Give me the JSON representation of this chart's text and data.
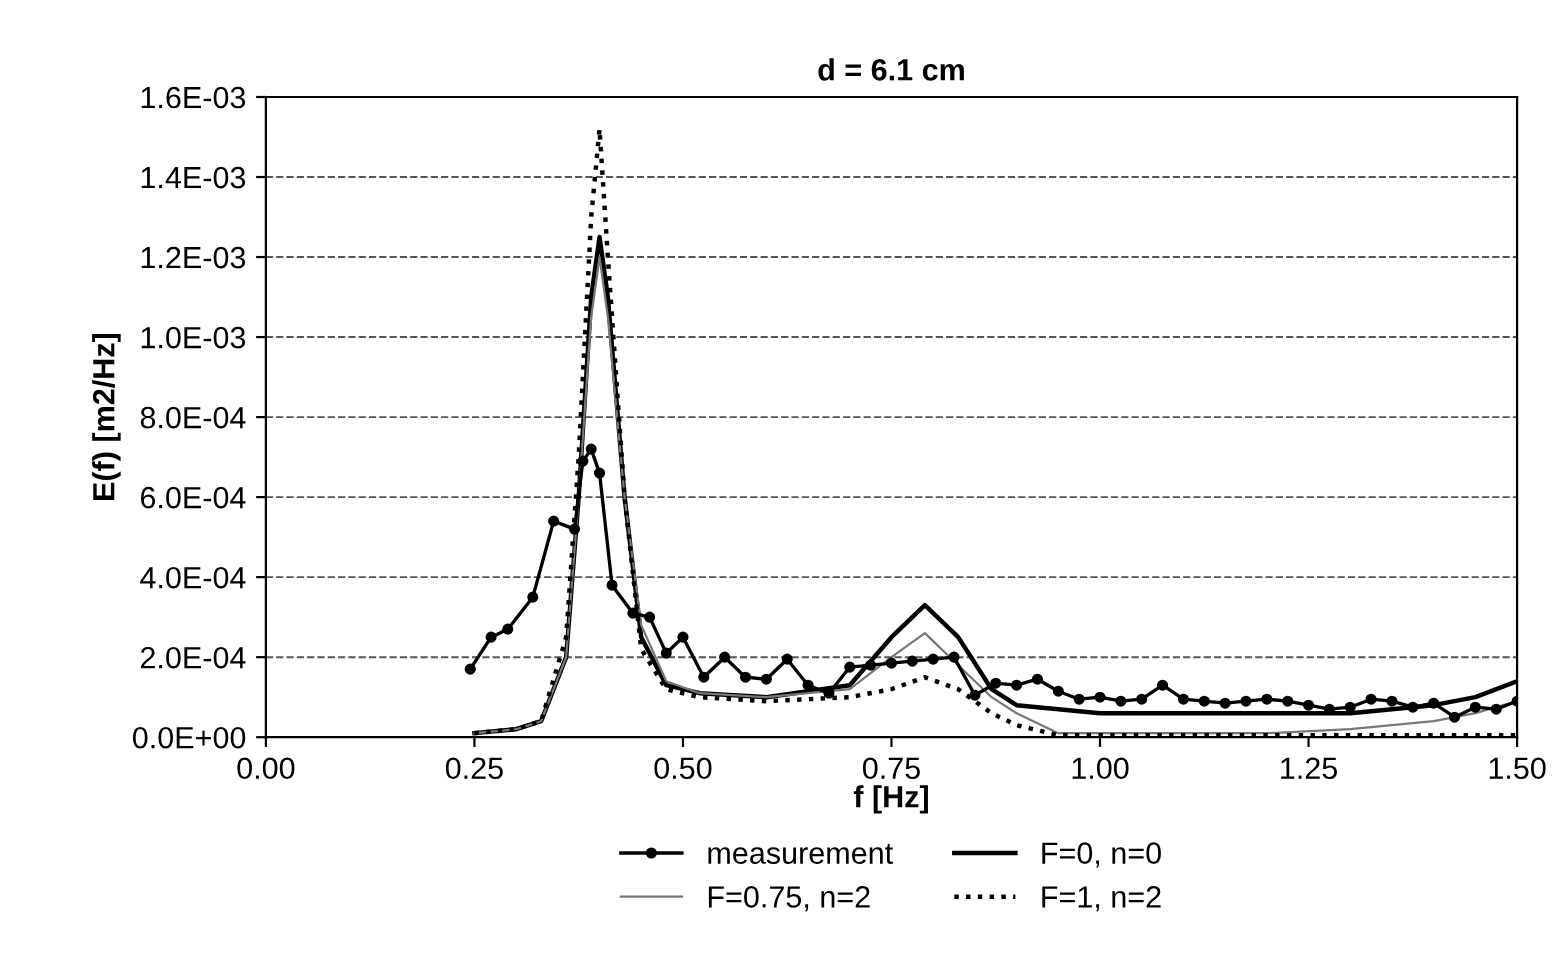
{
  "chart_data": {
    "type": "line",
    "title": "d = 6.1 cm",
    "xlabel": "f [Hz]",
    "ylabel": "E(f) [m2/Hz]",
    "xlim": [
      0,
      1.5
    ],
    "xticks": [
      {
        "value": 0,
        "label": "0.00"
      },
      {
        "value": 0.25,
        "label": "0.25"
      },
      {
        "value": 0.5,
        "label": "0.50"
      },
      {
        "value": 0.75,
        "label": "0.75"
      },
      {
        "value": 1.0,
        "label": "1.00"
      },
      {
        "value": 1.25,
        "label": "1.25"
      },
      {
        "value": 1.5,
        "label": "1.50"
      }
    ],
    "ylim": [
      0,
      0.0016
    ],
    "yticks": [
      {
        "value": 0,
        "label": "0.0E+00"
      },
      {
        "value": 0.0002,
        "label": "2.0E-04"
      },
      {
        "value": 0.0004,
        "label": "4.0E-04"
      },
      {
        "value": 0.0006,
        "label": "6.0E-04"
      },
      {
        "value": 0.0008,
        "label": "8.0E-04"
      },
      {
        "value": 0.001,
        "label": "1.0E-03"
      },
      {
        "value": 0.0012,
        "label": "1.2E-03"
      },
      {
        "value": 0.0014,
        "label": "1.4E-03"
      },
      {
        "value": 0.0016,
        "label": "1.6E-03"
      }
    ],
    "grid": "y",
    "legend": "bottom",
    "series": [
      {
        "name": "measurement",
        "color": "#000000",
        "marker": "circle",
        "line_style": "solid",
        "x": [
          0.245,
          0.27,
          0.29,
          0.32,
          0.345,
          0.37,
          0.38,
          0.39,
          0.4,
          0.415,
          0.44,
          0.46,
          0.48,
          0.5,
          0.525,
          0.55,
          0.575,
          0.6,
          0.625,
          0.65,
          0.675,
          0.7,
          0.725,
          0.75,
          0.775,
          0.8,
          0.825,
          0.85,
          0.875,
          0.9,
          0.925,
          0.95,
          0.975,
          1.0,
          1.025,
          1.05,
          1.075,
          1.1,
          1.125,
          1.15,
          1.175,
          1.2,
          1.225,
          1.25,
          1.275,
          1.3,
          1.325,
          1.35,
          1.375,
          1.4,
          1.425,
          1.45,
          1.475,
          1.5
        ],
        "values": [
          0.00017,
          0.00025,
          0.00027,
          0.00035,
          0.00054,
          0.00052,
          0.00069,
          0.00072,
          0.00066,
          0.00038,
          0.00031,
          0.0003,
          0.00021,
          0.00025,
          0.00015,
          0.0002,
          0.00015,
          0.000145,
          0.000195,
          0.00013,
          0.00011,
          0.000175,
          0.00018,
          0.000185,
          0.00019,
          0.000195,
          0.0002,
          0.000105,
          0.000135,
          0.00013,
          0.000145,
          0.000115,
          9.5e-05,
          0.0001,
          9e-05,
          9.5e-05,
          0.00013,
          9.5e-05,
          9e-05,
          8.5e-05,
          9e-05,
          9.5e-05,
          9e-05,
          8e-05,
          7e-05,
          7.5e-05,
          9.5e-05,
          9e-05,
          7.5e-05,
          8.5e-05,
          5e-05,
          7.5e-05,
          7e-05,
          9e-05
        ]
      },
      {
        "name": "F=0, n=0",
        "color": "#000000",
        "marker": "none",
        "line_style": "solid",
        "x": [
          0.25,
          0.3,
          0.33,
          0.36,
          0.375,
          0.39,
          0.4,
          0.41,
          0.43,
          0.45,
          0.48,
          0.52,
          0.6,
          0.7,
          0.75,
          0.79,
          0.83,
          0.87,
          0.9,
          1.0,
          1.1,
          1.2,
          1.3,
          1.4,
          1.45,
          1.5
        ],
        "values": [
          1e-05,
          2e-05,
          4e-05,
          0.0002,
          0.0006,
          0.0011,
          0.00125,
          0.0011,
          0.0006,
          0.00025,
          0.00013,
          0.00011,
          0.0001,
          0.00013,
          0.00025,
          0.00033,
          0.00025,
          0.00012,
          8e-05,
          6e-05,
          6e-05,
          6e-05,
          6e-05,
          8e-05,
          0.0001,
          0.00014
        ]
      },
      {
        "name": "F=0.75, n=2",
        "color": "#777777",
        "marker": "none",
        "line_style": "solid",
        "x": [
          0.25,
          0.3,
          0.33,
          0.36,
          0.375,
          0.39,
          0.4,
          0.41,
          0.43,
          0.45,
          0.48,
          0.52,
          0.6,
          0.7,
          0.75,
          0.79,
          0.83,
          0.87,
          0.9,
          0.95,
          1.0,
          1.1,
          1.2,
          1.3,
          1.4,
          1.45,
          1.5
        ],
        "values": [
          1e-05,
          2e-05,
          4e-05,
          0.0002,
          0.0006,
          0.00105,
          0.0012,
          0.00105,
          0.0006,
          0.00028,
          0.00014,
          0.00011,
          0.0001,
          0.00012,
          0.0002,
          0.00026,
          0.00018,
          0.0001,
          6e-05,
          1e-05,
          1e-05,
          1e-05,
          1e-05,
          2e-05,
          4e-05,
          6e-05,
          9e-05
        ]
      },
      {
        "name": "F=1, n=2",
        "color": "#000000",
        "marker": "none",
        "line_style": "dotted",
        "x": [
          0.25,
          0.3,
          0.33,
          0.36,
          0.375,
          0.39,
          0.4,
          0.41,
          0.43,
          0.45,
          0.48,
          0.52,
          0.6,
          0.7,
          0.75,
          0.79,
          0.83,
          0.87,
          0.9,
          0.95,
          1.0,
          1.1,
          1.2,
          1.3,
          1.4,
          1.5
        ],
        "values": [
          1e-05,
          2e-05,
          4e-05,
          0.00025,
          0.0007,
          0.0013,
          0.00152,
          0.0012,
          0.0006,
          0.00022,
          0.00012,
          0.0001,
          9e-05,
          0.0001,
          0.00012,
          0.00015,
          0.00012,
          6e-05,
          3e-05,
          5e-06,
          5e-06,
          5e-06,
          5e-06,
          5e-06,
          5e-06,
          5e-06
        ]
      }
    ]
  }
}
